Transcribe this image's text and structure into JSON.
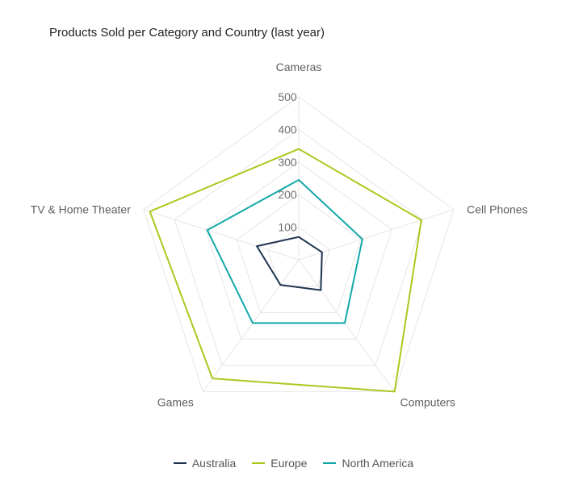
{
  "chart_data": {
    "type": "radar",
    "title": "Products Sold per Category and Country (last year)",
    "categories": [
      "Cameras",
      "Cell Phones",
      "Computers",
      "Games",
      "TV & Home Theater"
    ],
    "ticks": [
      "100",
      "200",
      "300",
      "400",
      "500"
    ],
    "rmax": 500,
    "grid": true,
    "series": [
      {
        "name": "Australia",
        "color": "#1e3350",
        "values": [
          70,
          75,
          115,
          95,
          135
        ]
      },
      {
        "name": "Europe",
        "color": "#a9c91d",
        "values": [
          340,
          395,
          500,
          450,
          480
        ]
      },
      {
        "name": "North America",
        "color": "#13a8aa",
        "values": [
          245,
          205,
          240,
          240,
          295
        ]
      }
    ],
    "legend_position": "bottom-center"
  }
}
